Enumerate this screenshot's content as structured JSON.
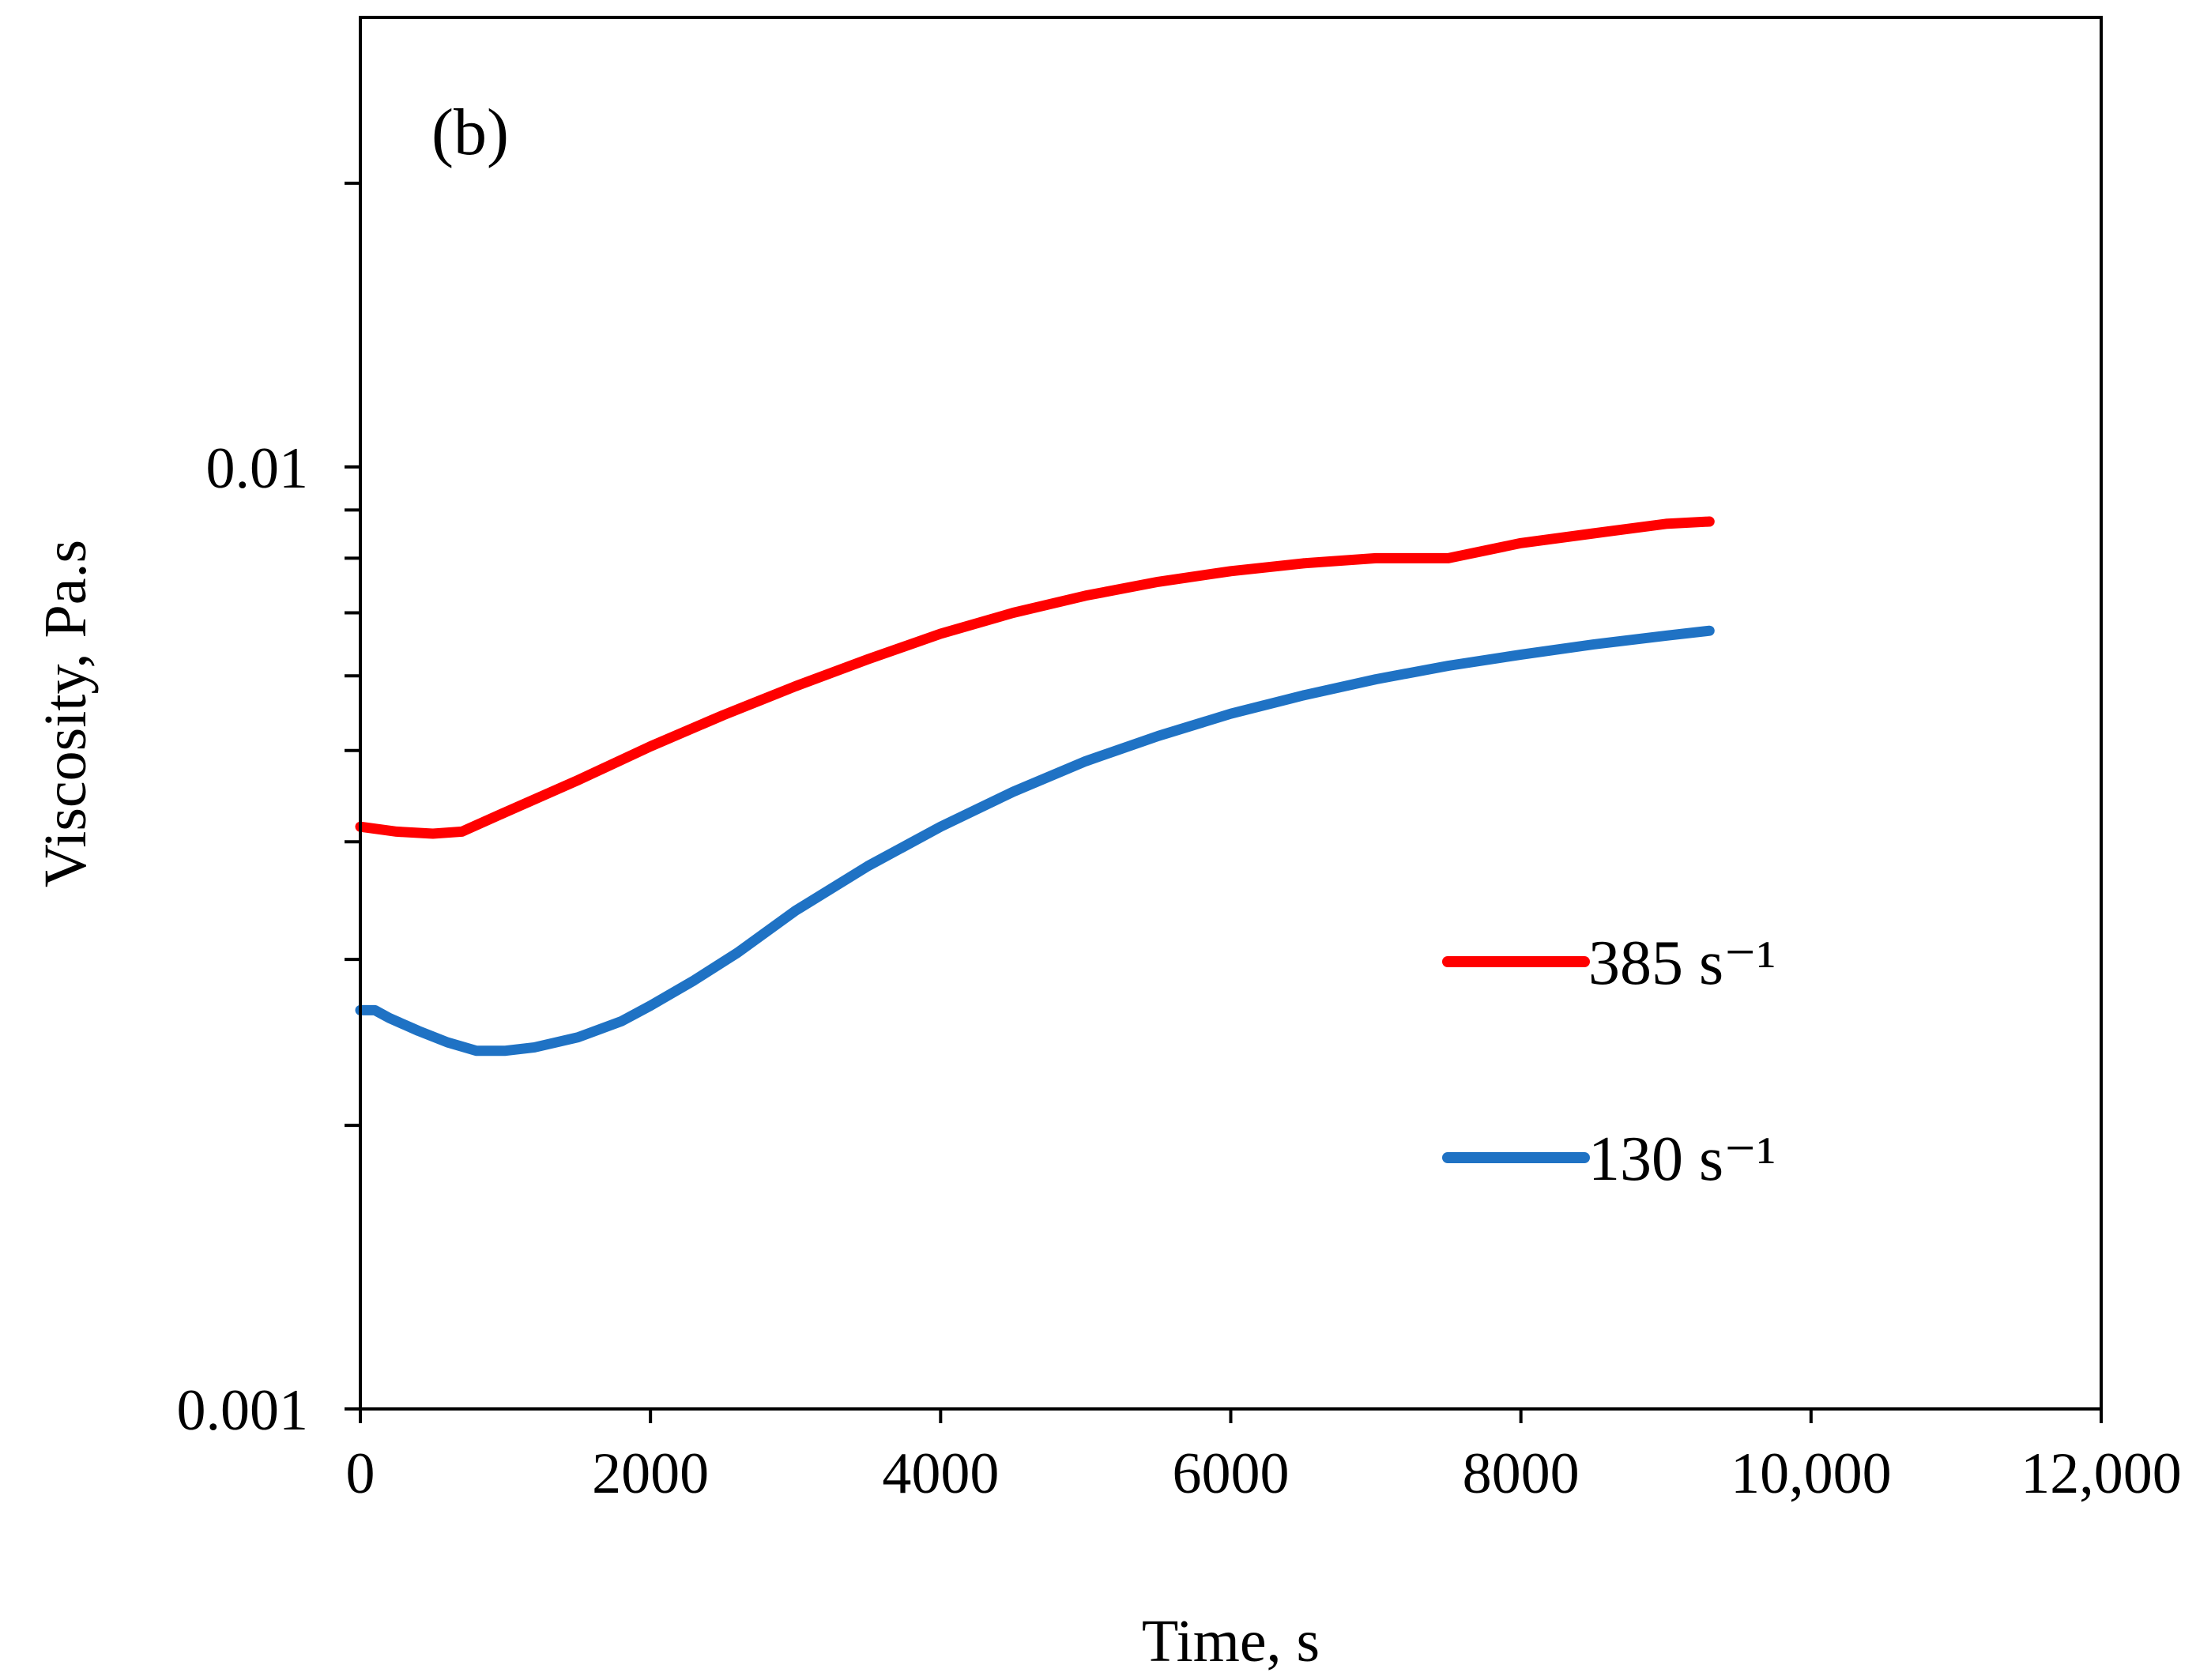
{
  "chart_data": {
    "type": "line",
    "panel_label": "(b)",
    "xlabel": "Time, s",
    "ylabel": "Viscosity, Pa.s",
    "xlim": [
      0,
      12000
    ],
    "ylim": [
      0.001,
      0.03
    ],
    "yscale": "log",
    "x_ticks": [
      0,
      2000,
      4000,
      6000,
      8000,
      10000,
      12000
    ],
    "x_tick_labels": [
      "0",
      "2000",
      "4000",
      "6000",
      "8000",
      "10,000",
      "12,000"
    ],
    "y_ticks": [
      0.001,
      0.01
    ],
    "y_tick_labels": [
      "0.001",
      "0.01"
    ],
    "y_minor_ticks": [
      0.002,
      0.003,
      0.004,
      0.005,
      0.006,
      0.007,
      0.008,
      0.009,
      0.02
    ],
    "legend_position": "center-right",
    "series": [
      {
        "name": "385 s⁻¹",
        "color": "#ff0000",
        "x": [
          0,
          250,
          500,
          700,
          1000,
          1500,
          2000,
          2500,
          3000,
          3500,
          4000,
          4500,
          5000,
          5500,
          6000,
          6500,
          7000,
          7500,
          8000,
          8500,
          9000,
          9300
        ],
        "y": [
          0.00415,
          0.0041,
          0.00408,
          0.0041,
          0.0043,
          0.00465,
          0.00505,
          0.00545,
          0.00585,
          0.00625,
          0.00665,
          0.007,
          0.0073,
          0.00755,
          0.00775,
          0.0079,
          0.008,
          0.008,
          0.0083,
          0.0085,
          0.0087,
          0.00875
        ]
      },
      {
        "name": "130 s⁻¹",
        "color": "#1f72c4",
        "x": [
          0,
          100,
          200,
          400,
          600,
          800,
          1000,
          1200,
          1500,
          1800,
          2000,
          2300,
          2600,
          3000,
          3500,
          4000,
          4500,
          5000,
          5500,
          6000,
          6500,
          7000,
          7500,
          8000,
          8500,
          9000,
          9300
        ],
        "y": [
          0.00265,
          0.00265,
          0.0026,
          0.00252,
          0.00245,
          0.0024,
          0.0024,
          0.00242,
          0.00248,
          0.00258,
          0.00268,
          0.00285,
          0.00305,
          0.00338,
          0.00377,
          0.00415,
          0.00452,
          0.00487,
          0.00518,
          0.00547,
          0.00572,
          0.00595,
          0.00615,
          0.00632,
          0.00648,
          0.00662,
          0.0067
        ]
      }
    ]
  }
}
